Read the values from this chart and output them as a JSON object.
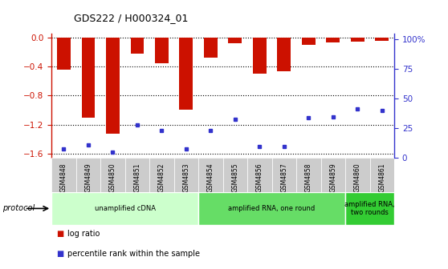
{
  "title": "GDS222 / H000324_01",
  "samples": [
    "GSM4848",
    "GSM4849",
    "GSM4850",
    "GSM4851",
    "GSM4852",
    "GSM4853",
    "GSM4854",
    "GSM4855",
    "GSM4856",
    "GSM4857",
    "GSM4858",
    "GSM4859",
    "GSM4860",
    "GSM4861"
  ],
  "log_ratios": [
    -0.44,
    -1.1,
    -1.32,
    -0.22,
    -0.36,
    -1.0,
    -0.28,
    -0.08,
    -0.5,
    -0.47,
    -0.1,
    -0.07,
    -0.06,
    -0.05
  ],
  "percentile_ranks": [
    7,
    10,
    4,
    26,
    22,
    7,
    22,
    31,
    9,
    9,
    32,
    33,
    39,
    38
  ],
  "bar_color": "#cc1100",
  "dot_color": "#3333cc",
  "ylim_left": [
    -1.65,
    0.05
  ],
  "ylim_right": [
    0,
    105
  ],
  "yticks_left": [
    0,
    -0.4,
    -0.8,
    -1.2,
    -1.6
  ],
  "yticks_right": [
    0,
    25,
    50,
    75,
    100
  ],
  "protocols": [
    {
      "label": "unamplified cDNA",
      "count": 6,
      "color": "#ccffcc"
    },
    {
      "label": "amplified RNA, one round",
      "count": 6,
      "color": "#66dd66"
    },
    {
      "label": "amplified RNA,\ntwo rounds",
      "count": 2,
      "color": "#33cc33"
    }
  ],
  "protocol_label": "protocol",
  "legend_items": [
    {
      "color": "#cc1100",
      "label": "log ratio"
    },
    {
      "color": "#3333cc",
      "label": "percentile rank within the sample"
    }
  ],
  "bar_width": 0.55,
  "tick_label_color_left": "#cc1100",
  "tick_label_color_right": "#3333cc",
  "bg_color": "#ffffff",
  "plot_bg": "#ffffff",
  "xtick_bg": "#cccccc"
}
